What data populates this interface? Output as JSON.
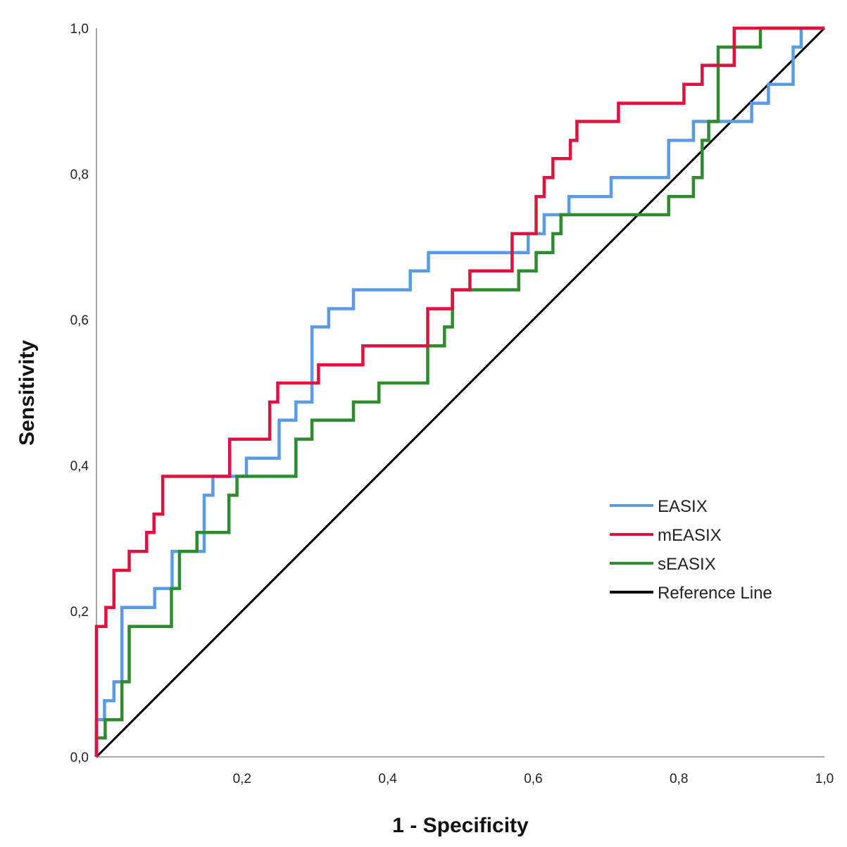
{
  "chart_data": {
    "type": "line",
    "title": "",
    "xlabel": "1 - Specificity",
    "ylabel": "Sensitivity",
    "xlim": [
      0,
      1
    ],
    "ylim": [
      0,
      1
    ],
    "grid": false,
    "legend_position": "bottom-right",
    "xticks": [
      "0,2",
      "0,4",
      "0,6",
      "0,8",
      "1,0"
    ],
    "xtick_values": [
      0.2,
      0.4,
      0.6,
      0.8,
      1.0
    ],
    "yticks": [
      "0,0",
      "0,2",
      "0,4",
      "0,6",
      "0,8",
      "1,0"
    ],
    "ytick_values": [
      0,
      0.2,
      0.4,
      0.6,
      0.8,
      1.0
    ],
    "series": [
      {
        "name": "EASIX",
        "color": "#5b9be6",
        "points": [
          [
            0,
            0
          ],
          [
            0,
            0.051
          ],
          [
            0.011,
            0.051
          ],
          [
            0.011,
            0.077
          ],
          [
            0.024,
            0.077
          ],
          [
            0.024,
            0.103
          ],
          [
            0.035,
            0.103
          ],
          [
            0.035,
            0.205
          ],
          [
            0.08,
            0.205
          ],
          [
            0.08,
            0.231
          ],
          [
            0.104,
            0.231
          ],
          [
            0.104,
            0.282
          ],
          [
            0.148,
            0.282
          ],
          [
            0.148,
            0.359
          ],
          [
            0.16,
            0.359
          ],
          [
            0.16,
            0.385
          ],
          [
            0.206,
            0.385
          ],
          [
            0.206,
            0.41
          ],
          [
            0.251,
            0.41
          ],
          [
            0.251,
            0.462
          ],
          [
            0.274,
            0.462
          ],
          [
            0.274,
            0.487
          ],
          [
            0.296,
            0.487
          ],
          [
            0.296,
            0.59
          ],
          [
            0.319,
            0.59
          ],
          [
            0.319,
            0.615
          ],
          [
            0.353,
            0.615
          ],
          [
            0.353,
            0.641
          ],
          [
            0.431,
            0.641
          ],
          [
            0.431,
            0.667
          ],
          [
            0.456,
            0.667
          ],
          [
            0.456,
            0.692
          ],
          [
            0.593,
            0.692
          ],
          [
            0.593,
            0.718
          ],
          [
            0.615,
            0.718
          ],
          [
            0.615,
            0.744
          ],
          [
            0.649,
            0.744
          ],
          [
            0.649,
            0.769
          ],
          [
            0.707,
            0.769
          ],
          [
            0.707,
            0.795
          ],
          [
            0.786,
            0.795
          ],
          [
            0.786,
            0.846
          ],
          [
            0.82,
            0.846
          ],
          [
            0.82,
            0.872
          ],
          [
            0.9,
            0.872
          ],
          [
            0.9,
            0.897
          ],
          [
            0.923,
            0.897
          ],
          [
            0.923,
            0.923
          ],
          [
            0.957,
            0.923
          ],
          [
            0.957,
            0.974
          ],
          [
            0.968,
            0.974
          ],
          [
            0.968,
            1
          ],
          [
            1,
            1
          ]
        ]
      },
      {
        "name": "mEASIX",
        "color": "#e0103f",
        "points": [
          [
            0,
            0
          ],
          [
            0,
            0.179
          ],
          [
            0.013,
            0.179
          ],
          [
            0.013,
            0.205
          ],
          [
            0.024,
            0.205
          ],
          [
            0.024,
            0.256
          ],
          [
            0.045,
            0.256
          ],
          [
            0.045,
            0.282
          ],
          [
            0.069,
            0.282
          ],
          [
            0.069,
            0.308
          ],
          [
            0.079,
            0.308
          ],
          [
            0.079,
            0.333
          ],
          [
            0.091,
            0.333
          ],
          [
            0.091,
            0.385
          ],
          [
            0.183,
            0.385
          ],
          [
            0.183,
            0.436
          ],
          [
            0.238,
            0.436
          ],
          [
            0.238,
            0.487
          ],
          [
            0.249,
            0.487
          ],
          [
            0.249,
            0.513
          ],
          [
            0.305,
            0.513
          ],
          [
            0.305,
            0.538
          ],
          [
            0.366,
            0.538
          ],
          [
            0.366,
            0.564
          ],
          [
            0.455,
            0.564
          ],
          [
            0.455,
            0.615
          ],
          [
            0.489,
            0.615
          ],
          [
            0.489,
            0.641
          ],
          [
            0.513,
            0.641
          ],
          [
            0.513,
            0.667
          ],
          [
            0.571,
            0.667
          ],
          [
            0.571,
            0.718
          ],
          [
            0.604,
            0.718
          ],
          [
            0.604,
            0.769
          ],
          [
            0.615,
            0.769
          ],
          [
            0.615,
            0.795
          ],
          [
            0.627,
            0.795
          ],
          [
            0.627,
            0.821
          ],
          [
            0.651,
            0.821
          ],
          [
            0.651,
            0.846
          ],
          [
            0.66,
            0.846
          ],
          [
            0.66,
            0.872
          ],
          [
            0.717,
            0.872
          ],
          [
            0.717,
            0.897
          ],
          [
            0.807,
            0.897
          ],
          [
            0.807,
            0.923
          ],
          [
            0.832,
            0.923
          ],
          [
            0.832,
            0.949
          ],
          [
            0.876,
            0.949
          ],
          [
            0.876,
            0.974
          ],
          [
            0.876,
            1
          ],
          [
            1,
            1
          ]
        ]
      },
      {
        "name": "sEASIX",
        "color": "#2e8b2e",
        "points": [
          [
            0,
            0
          ],
          [
            0,
            0.026
          ],
          [
            0.012,
            0.026
          ],
          [
            0.012,
            0.051
          ],
          [
            0.035,
            0.051
          ],
          [
            0.035,
            0.103
          ],
          [
            0.045,
            0.103
          ],
          [
            0.045,
            0.179
          ],
          [
            0.103,
            0.179
          ],
          [
            0.103,
            0.231
          ],
          [
            0.114,
            0.231
          ],
          [
            0.114,
            0.282
          ],
          [
            0.138,
            0.282
          ],
          [
            0.138,
            0.308
          ],
          [
            0.182,
            0.308
          ],
          [
            0.182,
            0.359
          ],
          [
            0.193,
            0.359
          ],
          [
            0.193,
            0.385
          ],
          [
            0.274,
            0.385
          ],
          [
            0.274,
            0.436
          ],
          [
            0.296,
            0.436
          ],
          [
            0.296,
            0.462
          ],
          [
            0.353,
            0.462
          ],
          [
            0.353,
            0.487
          ],
          [
            0.388,
            0.487
          ],
          [
            0.388,
            0.513
          ],
          [
            0.455,
            0.513
          ],
          [
            0.455,
            0.564
          ],
          [
            0.478,
            0.564
          ],
          [
            0.478,
            0.59
          ],
          [
            0.489,
            0.59
          ],
          [
            0.489,
            0.641
          ],
          [
            0.58,
            0.641
          ],
          [
            0.58,
            0.667
          ],
          [
            0.604,
            0.667
          ],
          [
            0.604,
            0.692
          ],
          [
            0.627,
            0.692
          ],
          [
            0.627,
            0.718
          ],
          [
            0.638,
            0.718
          ],
          [
            0.638,
            0.744
          ],
          [
            0.786,
            0.744
          ],
          [
            0.786,
            0.769
          ],
          [
            0.82,
            0.769
          ],
          [
            0.82,
            0.795
          ],
          [
            0.832,
            0.795
          ],
          [
            0.832,
            0.846
          ],
          [
            0.841,
            0.846
          ],
          [
            0.841,
            0.872
          ],
          [
            0.854,
            0.872
          ],
          [
            0.854,
            0.974
          ],
          [
            0.912,
            0.974
          ],
          [
            0.912,
            1
          ],
          [
            1,
            1
          ]
        ]
      },
      {
        "name": "Reference Line",
        "color": "#000000",
        "points": [
          [
            0,
            0
          ],
          [
            1,
            1
          ]
        ]
      }
    ]
  }
}
